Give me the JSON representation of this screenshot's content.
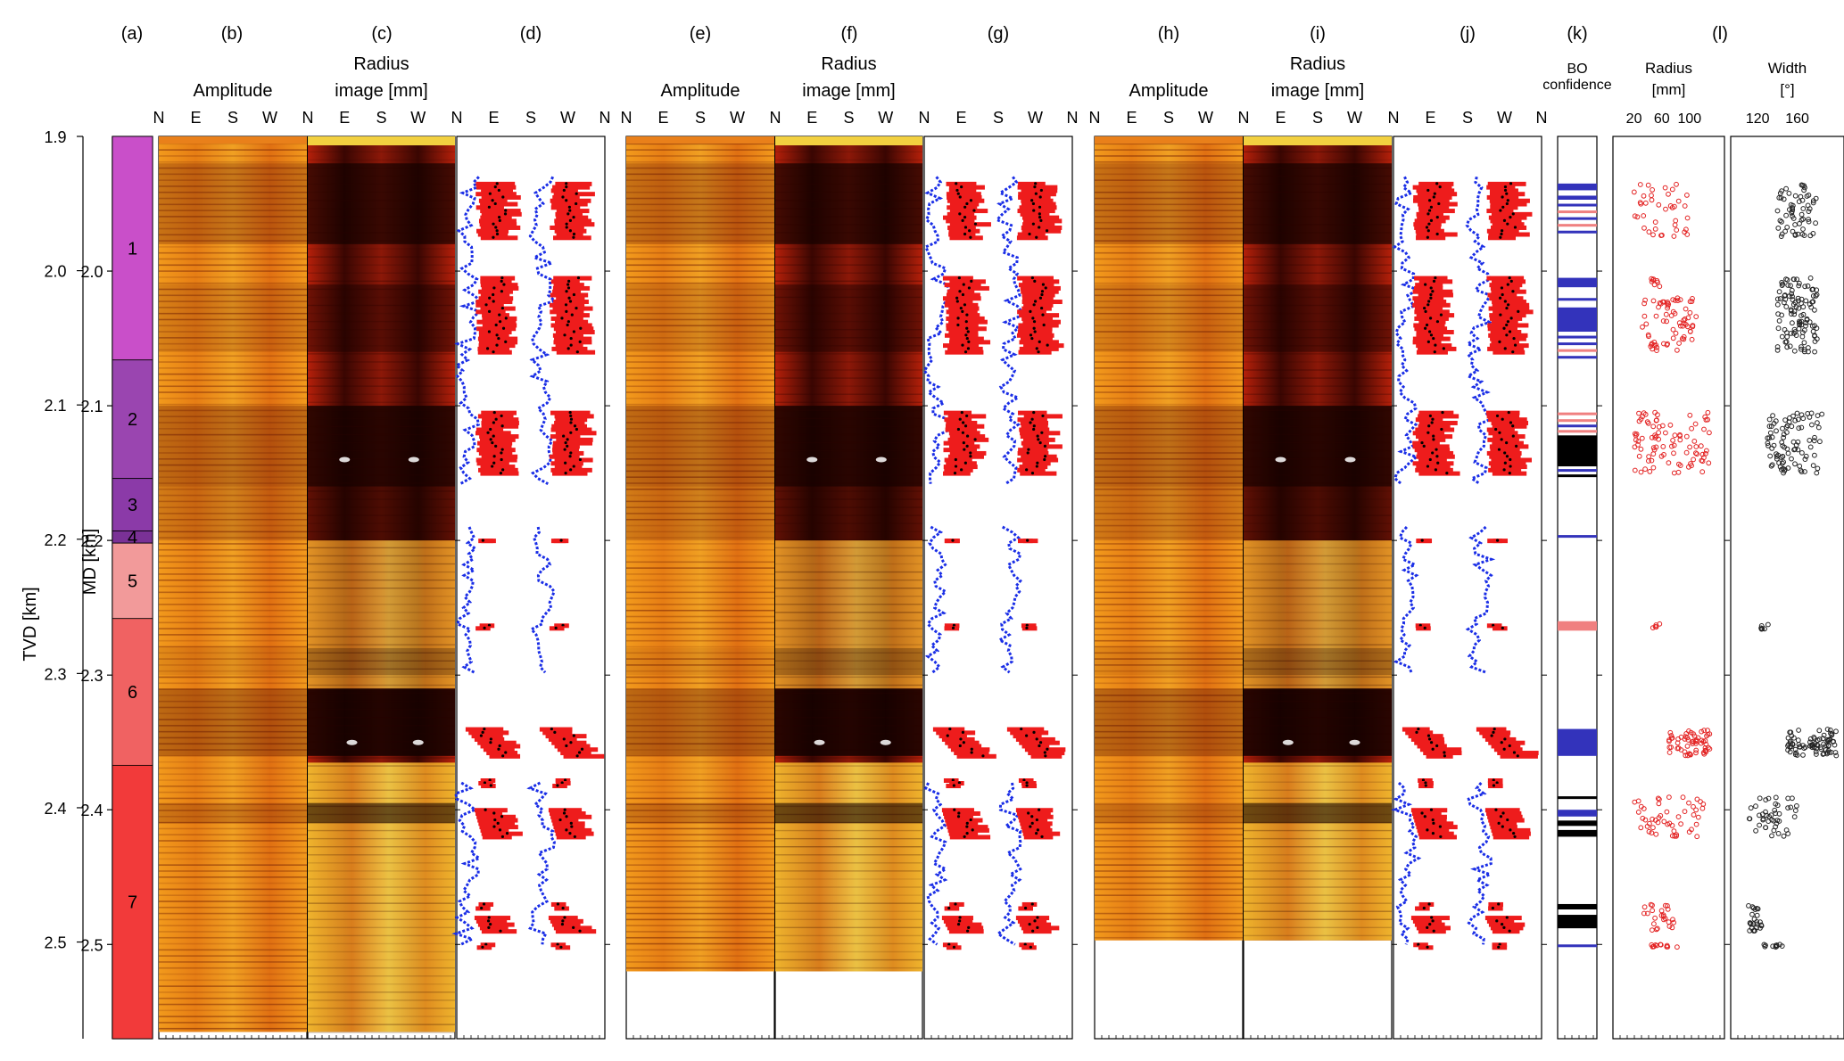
{
  "chart_data": {
    "type": "scatter",
    "depth_axes": {
      "tvd_label": "TVD [km]",
      "tvd_ticks": [
        "1.9",
        "2.0",
        "2.1",
        "2.2",
        "2.3",
        "2.4",
        "2.5"
      ],
      "md_label": "MD [km]",
      "md_ticks": [
        "2.0",
        "2.1",
        "2.2",
        "2.3",
        "2.4",
        "2.5"
      ],
      "md_range": [
        1.9,
        2.57
      ]
    },
    "panels": [
      {
        "id": "a",
        "label": "(a)",
        "title": "",
        "kind": "zones"
      },
      {
        "id": "b",
        "label": "(b)",
        "title": "Amplitude",
        "kind": "amplitude",
        "azimuth_ticks": [
          "N",
          "E",
          "S",
          "W"
        ]
      },
      {
        "id": "c",
        "label": "(c)",
        "title": "Radius image [mm]",
        "kind": "radius",
        "azimuth_ticks": [
          "N",
          "E",
          "S",
          "W"
        ]
      },
      {
        "id": "d",
        "label": "(d)",
        "title": "",
        "kind": "picks",
        "azimuth_ticks": [
          "N",
          "E",
          "S",
          "W",
          "N"
        ]
      },
      {
        "id": "e",
        "label": "(e)",
        "title": "Amplitude",
        "kind": "amplitude",
        "azimuth_ticks": [
          "N",
          "E",
          "S",
          "W"
        ]
      },
      {
        "id": "f",
        "label": "(f)",
        "title": "Radius image [mm]",
        "kind": "radius",
        "azimuth_ticks": [
          "N",
          "E",
          "S",
          "W"
        ]
      },
      {
        "id": "g",
        "label": "(g)",
        "title": "",
        "kind": "picks",
        "azimuth_ticks": [
          "N",
          "E",
          "S",
          "W",
          "N"
        ]
      },
      {
        "id": "h",
        "label": "(h)",
        "title": "Amplitude",
        "kind": "amplitude",
        "azimuth_ticks": [
          "N",
          "E",
          "S",
          "W"
        ]
      },
      {
        "id": "i",
        "label": "(i)",
        "title": "Radius image [mm]",
        "kind": "radius",
        "azimuth_ticks": [
          "N",
          "E",
          "S",
          "W"
        ]
      },
      {
        "id": "j",
        "label": "(j)",
        "title": "",
        "kind": "picks",
        "azimuth_ticks": [
          "N",
          "E",
          "S",
          "W",
          "N"
        ]
      },
      {
        "id": "k",
        "label": "(k)",
        "title": "BO confidence",
        "kind": "confidence"
      },
      {
        "id": "l",
        "label": "(l)",
        "title": "",
        "kind": "scatter_pair"
      }
    ],
    "zones": [
      {
        "name": "1",
        "top": 1.9,
        "bottom": 2.066,
        "color": "#c94fc9"
      },
      {
        "name": "2",
        "top": 2.066,
        "bottom": 2.154,
        "color": "#9a45b0"
      },
      {
        "name": "3",
        "top": 2.154,
        "bottom": 2.193,
        "color": "#8b3aa8"
      },
      {
        "name": "4",
        "top": 2.193,
        "bottom": 2.202,
        "color": "#7a3196"
      },
      {
        "name": "5",
        "top": 2.202,
        "bottom": 2.258,
        "color": "#f29a9a"
      },
      {
        "name": "6",
        "top": 2.258,
        "bottom": 2.367,
        "color": "#f06262"
      },
      {
        "name": "7",
        "top": 2.367,
        "bottom": 2.57,
        "color": "#f23a3a"
      }
    ],
    "image_extents": {
      "b": 2.565,
      "c": 2.565,
      "e": 2.52,
      "f": 2.52,
      "h": 2.497,
      "i": 2.497
    },
    "dark_bands": [
      [
        1.92,
        1.98,
        0.8
      ],
      [
        2.01,
        2.06,
        0.5
      ],
      [
        2.1,
        2.16,
        0.95
      ],
      [
        2.16,
        2.2,
        0.6
      ],
      [
        2.31,
        2.36,
        1.0
      ],
      [
        2.395,
        2.41,
        0.7
      ],
      [
        2.28,
        2.3,
        0.3
      ]
    ],
    "breakout_intervals": [
      [
        1.935,
        1.975,
        0,
        0
      ],
      [
        2.005,
        2.06,
        0,
        0
      ],
      [
        2.105,
        2.15,
        0,
        0
      ],
      [
        2.2,
        2.2,
        0,
        0
      ],
      [
        2.263,
        2.265,
        0,
        0
      ],
      [
        2.34,
        2.36,
        1,
        15
      ],
      [
        2.378,
        2.382,
        0,
        0
      ],
      [
        2.4,
        2.42,
        1,
        5
      ],
      [
        2.47,
        2.473,
        0,
        0
      ],
      [
        2.48,
        2.49,
        1,
        5
      ],
      [
        2.5,
        2.502,
        0,
        0
      ]
    ],
    "confidence_legend": {
      "blue": "#3333bb",
      "pink": "#f08080",
      "black": "#000000"
    },
    "confidence_bars": [
      [
        "blue",
        1.935,
        1.94
      ],
      [
        "blue",
        1.944,
        1.947
      ],
      [
        "blue",
        1.95,
        1.952
      ],
      [
        "pink",
        1.955,
        1.957
      ],
      [
        "blue",
        1.96,
        1.962
      ],
      [
        "pink",
        1.965,
        1.967
      ],
      [
        "blue",
        1.97,
        1.972
      ],
      [
        "blue",
        2.005,
        2.012
      ],
      [
        "blue",
        2.02,
        2.022
      ],
      [
        "blue",
        2.027,
        2.045
      ],
      [
        "blue",
        2.048,
        2.05
      ],
      [
        "blue",
        2.053,
        2.055
      ],
      [
        "pink",
        2.058,
        2.06
      ],
      [
        "blue",
        2.063,
        2.065
      ],
      [
        "pink",
        2.105,
        2.107
      ],
      [
        "pink",
        2.11,
        2.112
      ],
      [
        "blue",
        2.114,
        2.116
      ],
      [
        "pink",
        2.118,
        2.12
      ],
      [
        "black",
        2.122,
        2.145
      ],
      [
        "blue",
        2.147,
        2.149
      ],
      [
        "black",
        2.151,
        2.153
      ],
      [
        "blue",
        2.196,
        2.198
      ],
      [
        "pink",
        2.26,
        2.267
      ],
      [
        "blue",
        2.34,
        2.36
      ],
      [
        "black",
        2.39,
        2.392
      ],
      [
        "blue",
        2.4,
        2.405
      ],
      [
        "black",
        2.408,
        2.412
      ],
      [
        "black",
        2.415,
        2.42
      ],
      [
        "black",
        2.47,
        2.474
      ],
      [
        "black",
        2.478,
        2.488
      ],
      [
        "blue",
        2.5,
        2.502
      ]
    ],
    "scatter_radius": {
      "title": "Radius [mm]",
      "ticks": [
        "20",
        "60",
        "100"
      ],
      "xlim": [
        0,
        140
      ],
      "color": "#e32222",
      "clusters": [
        [
          1.935,
          1.975,
          20,
          100,
          40
        ],
        [
          2.005,
          2.012,
          40,
          60,
          8
        ],
        [
          2.02,
          2.06,
          30,
          110,
          70
        ],
        [
          2.105,
          2.15,
          20,
          130,
          90
        ],
        [
          2.262,
          2.266,
          40,
          60,
          5
        ],
        [
          2.34,
          2.36,
          70,
          130,
          60
        ],
        [
          2.39,
          2.42,
          20,
          120,
          50
        ],
        [
          2.47,
          2.49,
          30,
          80,
          25
        ],
        [
          2.5,
          2.502,
          40,
          90,
          12
        ]
      ]
    },
    "scatter_width": {
      "title": "Width [°]",
      "ticks": [
        "120",
        "160"
      ],
      "xlim": [
        100,
        200
      ],
      "color": "#222222",
      "clusters": [
        [
          1.935,
          1.975,
          140,
          180,
          60
        ],
        [
          2.005,
          2.06,
          140,
          180,
          110
        ],
        [
          2.105,
          2.15,
          130,
          185,
          90
        ],
        [
          2.262,
          2.266,
          120,
          140,
          6
        ],
        [
          2.34,
          2.36,
          150,
          200,
          80
        ],
        [
          2.39,
          2.42,
          110,
          160,
          45
        ],
        [
          2.47,
          2.49,
          110,
          125,
          25
        ],
        [
          2.5,
          2.502,
          120,
          150,
          10
        ]
      ]
    }
  }
}
